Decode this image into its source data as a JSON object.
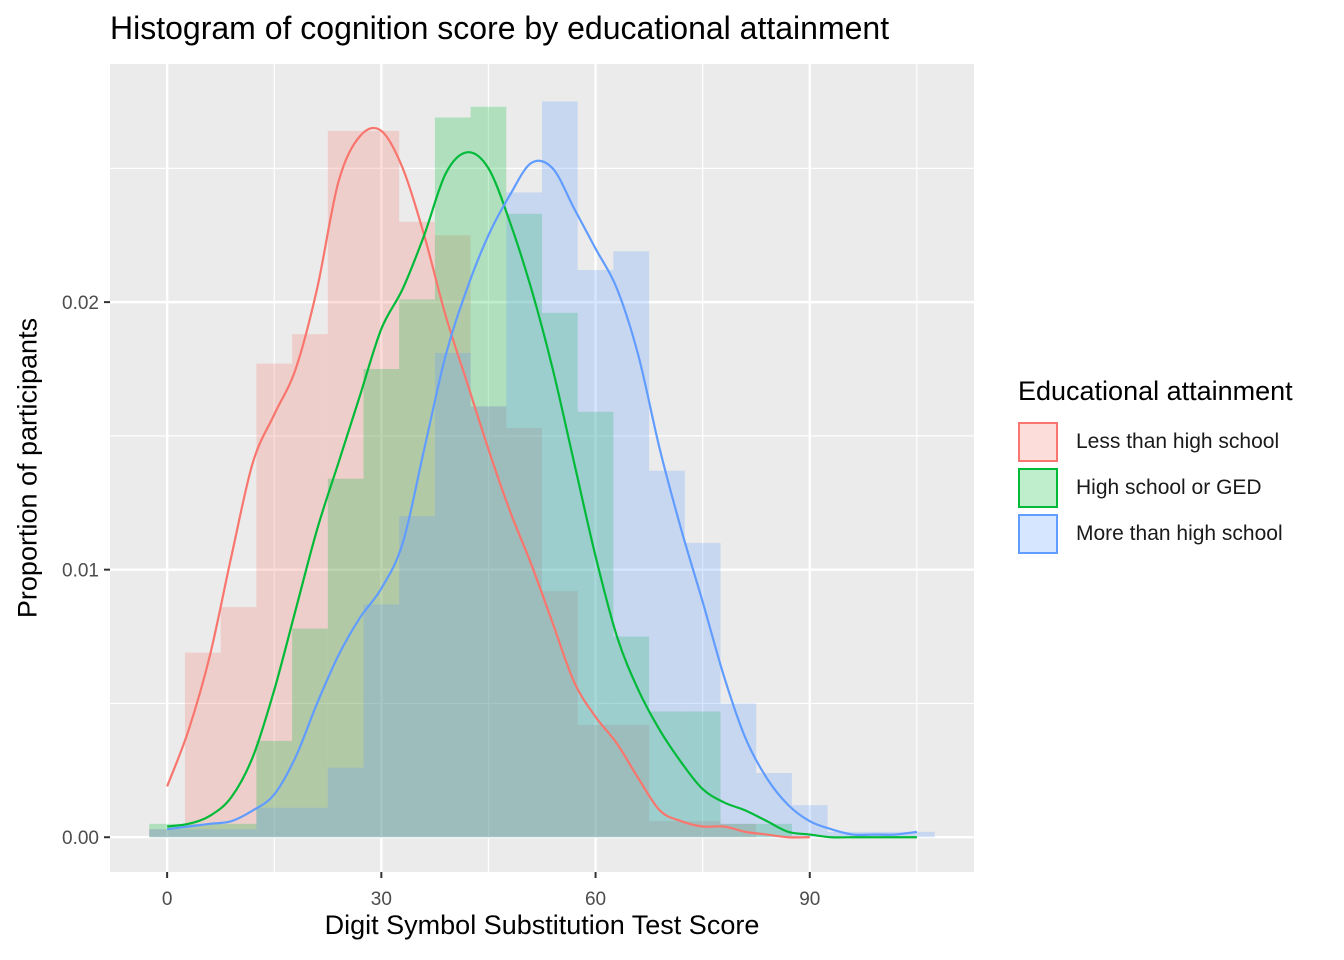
{
  "chart_data": {
    "type": "histogram",
    "title": "Histogram of cognition score by educational attainment",
    "xlabel": "Digit Symbol Substitution Test Score",
    "ylabel": "Proportion of participants",
    "xlim": [
      -8,
      113
    ],
    "ylim": [
      -0.0013,
      0.0289
    ],
    "x_ticks": [
      0,
      30,
      60,
      90
    ],
    "x_tick_labels": [
      "0",
      "30",
      "60",
      "90"
    ],
    "y_ticks": [
      0.0,
      0.01,
      0.02
    ],
    "y_tick_labels": [
      "0.00",
      "0.01",
      "0.02"
    ],
    "grid": true,
    "legend_title": "Educational attainment",
    "legend_position": "right",
    "bin_width": 5,
    "series": [
      {
        "name": "Less than high school",
        "color": "#F8766D",
        "bins": [
          {
            "start": -2.5,
            "height": 0.0003
          },
          {
            "start": 2.5,
            "height": 0.0069
          },
          {
            "start": 7.5,
            "height": 0.0086
          },
          {
            "start": 12.5,
            "height": 0.0177
          },
          {
            "start": 17.5,
            "height": 0.0188
          },
          {
            "start": 22.5,
            "height": 0.0264
          },
          {
            "start": 27.5,
            "height": 0.0264
          },
          {
            "start": 32.5,
            "height": 0.023
          },
          {
            "start": 37.5,
            "height": 0.0225
          },
          {
            "start": 42.5,
            "height": 0.0161
          },
          {
            "start": 47.5,
            "height": 0.0153
          },
          {
            "start": 52.5,
            "height": 0.0092
          },
          {
            "start": 57.5,
            "height": 0.0042
          },
          {
            "start": 62.5,
            "height": 0.0042
          },
          {
            "start": 67.5,
            "height": 0.0006
          },
          {
            "start": 72.5,
            "height": 0.0006
          },
          {
            "start": 77.5,
            "height": 0.0005
          },
          {
            "start": 82.5,
            "height": 0.0
          }
        ],
        "density_x": [
          0,
          3,
          6,
          9,
          12,
          15,
          18,
          21,
          24,
          27,
          30,
          33,
          36,
          39,
          42,
          45,
          48,
          51,
          54,
          57,
          60,
          63,
          66,
          69,
          72,
          75,
          78,
          81,
          84,
          87,
          90
        ],
        "density_y": [
          0.0019,
          0.004,
          0.0068,
          0.0105,
          0.014,
          0.0158,
          0.0175,
          0.0205,
          0.0245,
          0.0262,
          0.0264,
          0.025,
          0.0225,
          0.0195,
          0.017,
          0.0145,
          0.0122,
          0.0102,
          0.008,
          0.0058,
          0.0045,
          0.0035,
          0.0022,
          0.001,
          0.0006,
          0.0004,
          0.0004,
          0.0002,
          0.0001,
          0.0,
          0.0
        ]
      },
      {
        "name": "High school or GED",
        "color": "#00BA38",
        "bins": [
          {
            "start": -2.5,
            "height": 0.0005
          },
          {
            "start": 2.5,
            "height": 0.0005
          },
          {
            "start": 7.5,
            "height": 0.0005
          },
          {
            "start": 12.5,
            "height": 0.0036
          },
          {
            "start": 17.5,
            "height": 0.0078
          },
          {
            "start": 22.5,
            "height": 0.0134
          },
          {
            "start": 27.5,
            "height": 0.0175
          },
          {
            "start": 32.5,
            "height": 0.0201
          },
          {
            "start": 37.5,
            "height": 0.0269
          },
          {
            "start": 42.5,
            "height": 0.0273
          },
          {
            "start": 47.5,
            "height": 0.0233
          },
          {
            "start": 52.5,
            "height": 0.0196
          },
          {
            "start": 57.5,
            "height": 0.0159
          },
          {
            "start": 62.5,
            "height": 0.0075
          },
          {
            "start": 67.5,
            "height": 0.0047
          },
          {
            "start": 72.5,
            "height": 0.0047
          },
          {
            "start": 77.5,
            "height": 0.0005
          },
          {
            "start": 82.5,
            "height": 0.0005
          },
          {
            "start": 87.5,
            "height": 0.0
          }
        ],
        "density_x": [
          0,
          3,
          6,
          9,
          12,
          15,
          18,
          21,
          24,
          27,
          30,
          33,
          36,
          39,
          42,
          45,
          48,
          51,
          54,
          57,
          60,
          63,
          66,
          69,
          72,
          75,
          78,
          81,
          84,
          87,
          90,
          93,
          96,
          99,
          102,
          105
        ],
        "density_y": [
          0.0004,
          0.0005,
          0.0008,
          0.0015,
          0.003,
          0.0055,
          0.0085,
          0.0115,
          0.014,
          0.0165,
          0.019,
          0.0205,
          0.0225,
          0.0248,
          0.0256,
          0.025,
          0.023,
          0.0205,
          0.0175,
          0.014,
          0.0105,
          0.0075,
          0.0055,
          0.004,
          0.0028,
          0.0018,
          0.0013,
          0.001,
          0.0006,
          0.0002,
          0.0001,
          0.0,
          0.0,
          0.0,
          0.0,
          0.0
        ]
      },
      {
        "name": "More than high school",
        "color": "#619CFF",
        "bins": [
          {
            "start": -2.5,
            "height": 0.0003
          },
          {
            "start": 2.5,
            "height": 0.0003
          },
          {
            "start": 7.5,
            "height": 0.0003
          },
          {
            "start": 12.5,
            "height": 0.0011
          },
          {
            "start": 17.5,
            "height": 0.0011
          },
          {
            "start": 22.5,
            "height": 0.0026
          },
          {
            "start": 27.5,
            "height": 0.0087
          },
          {
            "start": 32.5,
            "height": 0.012
          },
          {
            "start": 37.5,
            "height": 0.0181
          },
          {
            "start": 42.5,
            "height": 0.0161
          },
          {
            "start": 47.5,
            "height": 0.0241
          },
          {
            "start": 52.5,
            "height": 0.0275
          },
          {
            "start": 57.5,
            "height": 0.0212
          },
          {
            "start": 62.5,
            "height": 0.0219
          },
          {
            "start": 67.5,
            "height": 0.0137
          },
          {
            "start": 72.5,
            "height": 0.011
          },
          {
            "start": 77.5,
            "height": 0.005
          },
          {
            "start": 82.5,
            "height": 0.0024
          },
          {
            "start": 87.5,
            "height": 0.0012
          },
          {
            "start": 92.5,
            "height": 0.0002
          },
          {
            "start": 97.5,
            "height": 0.0002
          },
          {
            "start": 102.5,
            "height": 0.0002
          }
        ],
        "density_x": [
          0,
          3,
          6,
          9,
          12,
          15,
          18,
          21,
          24,
          27,
          30,
          33,
          36,
          39,
          42,
          45,
          48,
          51,
          54,
          57,
          60,
          63,
          66,
          69,
          72,
          75,
          78,
          81,
          84,
          87,
          90,
          93,
          96,
          99,
          102,
          105
        ],
        "density_y": [
          0.0003,
          0.0004,
          0.0005,
          0.0006,
          0.001,
          0.0016,
          0.003,
          0.005,
          0.0068,
          0.0082,
          0.0093,
          0.011,
          0.0145,
          0.018,
          0.0205,
          0.0225,
          0.024,
          0.0252,
          0.025,
          0.0235,
          0.022,
          0.0205,
          0.018,
          0.0145,
          0.0115,
          0.0088,
          0.006,
          0.0037,
          0.0022,
          0.0012,
          0.0006,
          0.0003,
          0.0001,
          0.0001,
          0.0001,
          0.0002
        ]
      }
    ]
  }
}
